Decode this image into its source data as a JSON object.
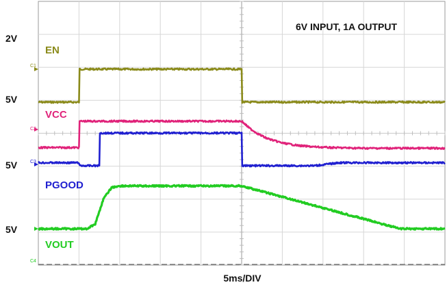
{
  "chart_data": {
    "type": "line",
    "title": "6V INPUT, 1A OUTPUT",
    "xlabel": "5ms/DIV",
    "x_unit": "ms",
    "xlim": [
      0,
      50
    ],
    "grid": true,
    "grid_divisions": {
      "x": 10,
      "y": 8
    },
    "series": [
      {
        "name": "EN",
        "channel": "C1",
        "color": "#8a8a1a",
        "scale": "2V",
        "x": [
          0,
          5,
          5.01,
          25,
          25.01,
          50
        ],
        "y_div": [
          -1,
          -1,
          0,
          0,
          -1,
          -1
        ]
      },
      {
        "name": "VCC",
        "channel": "C2",
        "color": "#e0237a",
        "scale": "5V",
        "x": [
          0,
          5,
          5.01,
          25,
          26,
          27,
          28,
          29,
          30,
          32,
          34,
          36,
          38,
          40,
          44,
          50
        ],
        "y_div": [
          -0.55,
          -0.55,
          0.25,
          0.25,
          0.03,
          -0.13,
          -0.26,
          -0.34,
          -0.41,
          -0.49,
          -0.53,
          -0.55,
          -0.56,
          -0.57,
          -0.57,
          -0.57
        ]
      },
      {
        "name": "PGOOD",
        "channel": "C3",
        "color": "#2020d0",
        "scale": "5V",
        "x": [
          0,
          5,
          5.01,
          7.5,
          7.51,
          25,
          25.01,
          34,
          37,
          50
        ],
        "y_div": [
          0.05,
          0.05,
          -0.04,
          -0.04,
          0.95,
          0.95,
          -0.04,
          -0.04,
          0.05,
          0.05
        ]
      },
      {
        "name": "VOUT",
        "channel": "C4",
        "color": "#22cc22",
        "scale": "5V",
        "x": [
          0,
          6,
          7,
          8,
          9,
          10,
          25,
          44.5,
          50
        ],
        "y_div": [
          0,
          0,
          0.15,
          0.9,
          1.25,
          1.3,
          1.3,
          0,
          0
        ]
      }
    ],
    "volt_labels": [
      "2V",
      "5V",
      "5V",
      "5V"
    ]
  }
}
